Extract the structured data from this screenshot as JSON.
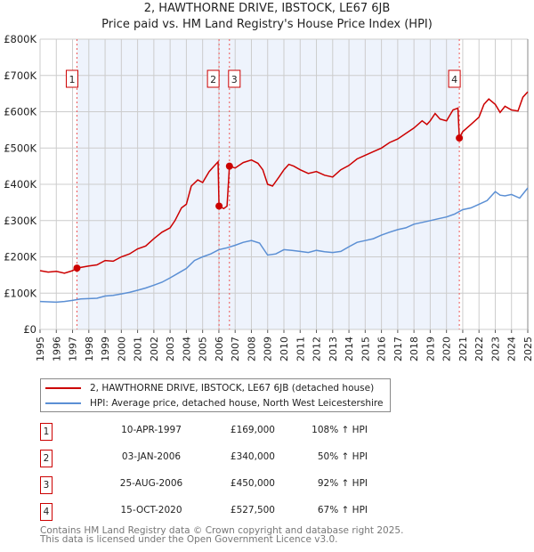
{
  "chart_data": {
    "type": "line",
    "title": "2, HAWTHORNE DRIVE, IBSTOCK, LE67 6JB",
    "subtitle": "Price paid vs. HM Land Registry's House Price Index (HPI)",
    "xlim": [
      1995,
      2025
    ],
    "ylim": [
      0,
      800000
    ],
    "x_ticks": [
      "1995",
      "1996",
      "1997",
      "1998",
      "1999",
      "2000",
      "2001",
      "2002",
      "2003",
      "2004",
      "2005",
      "2006",
      "2007",
      "2008",
      "2009",
      "2010",
      "2011",
      "2012",
      "2013",
      "2014",
      "2015",
      "2016",
      "2017",
      "2018",
      "2019",
      "2020",
      "2021",
      "2022",
      "2023",
      "2024",
      "2025"
    ],
    "y_ticks": [
      {
        "value": 0,
        "label": "£0"
      },
      {
        "value": 100000,
        "label": "£100K"
      },
      {
        "value": 200000,
        "label": "£200K"
      },
      {
        "value": 300000,
        "label": "£300K"
      },
      {
        "value": 400000,
        "label": "£400K"
      },
      {
        "value": 500000,
        "label": "£500K"
      },
      {
        "value": 600000,
        "label": "£600K"
      },
      {
        "value": 700000,
        "label": "£700K"
      },
      {
        "value": 800000,
        "label": "£800K"
      }
    ],
    "grid": true,
    "series": [
      {
        "name": "2, HAWTHORNE DRIVE, IBSTOCK, LE67 6JB (detached house)",
        "color": "#cc0000",
        "x": [
          1995,
          1995.5,
          1996,
          1996.5,
          1997,
          1997.27,
          1998,
          1998.5,
          1999,
          1999.5,
          2000,
          2000.5,
          2001,
          2001.5,
          2002,
          2002.5,
          2003,
          2003.3,
          2003.7,
          2004,
          2004.3,
          2004.7,
          2005,
          2005.4,
          2005.7,
          2005.95,
          2006.01,
          2006.3,
          2006.5,
          2006.65,
          2007,
          2007.5,
          2008,
          2008.4,
          2008.7,
          2009,
          2009.3,
          2009.7,
          2010,
          2010.3,
          2010.6,
          2011,
          2011.5,
          2012,
          2012.5,
          2013,
          2013.5,
          2014,
          2014.5,
          2015,
          2015.5,
          2016,
          2016.5,
          2017,
          2017.5,
          2018,
          2018.5,
          2018.8,
          2019,
          2019.3,
          2019.6,
          2020,
          2020.4,
          2020.7,
          2020.79,
          2021,
          2021.5,
          2022,
          2022.3,
          2022.6,
          2023,
          2023.3,
          2023.6,
          2024,
          2024.4,
          2024.7,
          2025
        ],
        "y": [
          162000,
          158000,
          160000,
          155000,
          162000,
          169000,
          175000,
          178000,
          190000,
          188000,
          200000,
          208000,
          222000,
          230000,
          250000,
          268000,
          280000,
          300000,
          335000,
          345000,
          395000,
          412000,
          405000,
          435000,
          450000,
          462000,
          340000,
          333000,
          340000,
          450000,
          445000,
          460000,
          467000,
          458000,
          440000,
          400000,
          395000,
          420000,
          440000,
          455000,
          450000,
          440000,
          430000,
          435000,
          425000,
          420000,
          440000,
          452000,
          470000,
          480000,
          490000,
          500000,
          515000,
          525000,
          540000,
          555000,
          575000,
          565000,
          575000,
          595000,
          580000,
          575000,
          605000,
          610000,
          527500,
          545000,
          565000,
          585000,
          620000,
          635000,
          620000,
          598000,
          615000,
          605000,
          602000,
          640000,
          655000
        ]
      },
      {
        "name": "HPI: Average price, detached house, North West Leicestershire",
        "color": "#5b8fd4",
        "x": [
          1995,
          1995.5,
          1996,
          1996.5,
          1997,
          1997.5,
          1998,
          1998.5,
          1999,
          1999.5,
          2000,
          2000.5,
          2001,
          2001.5,
          2002,
          2002.5,
          2003,
          2003.5,
          2004,
          2004.5,
          2005,
          2005.5,
          2006,
          2006.5,
          2007,
          2007.5,
          2008,
          2008.5,
          2009,
          2009.5,
          2010,
          2010.5,
          2011,
          2011.5,
          2012,
          2012.5,
          2013,
          2013.5,
          2014,
          2014.5,
          2015,
          2015.5,
          2016,
          2016.5,
          2017,
          2017.5,
          2018,
          2018.5,
          2019,
          2019.5,
          2020,
          2020.5,
          2021,
          2021.5,
          2022,
          2022.5,
          2023,
          2023.3,
          2023.6,
          2024,
          2024.5,
          2025
        ],
        "y": [
          77000,
          76000,
          75000,
          77000,
          80000,
          84000,
          85000,
          86000,
          92000,
          94000,
          98000,
          102000,
          108000,
          114000,
          122000,
          130000,
          142000,
          155000,
          168000,
          190000,
          200000,
          208000,
          220000,
          225000,
          232000,
          240000,
          245000,
          238000,
          205000,
          208000,
          220000,
          218000,
          215000,
          212000,
          218000,
          214000,
          212000,
          215000,
          228000,
          240000,
          245000,
          250000,
          260000,
          268000,
          275000,
          280000,
          290000,
          295000,
          300000,
          305000,
          310000,
          318000,
          330000,
          335000,
          345000,
          355000,
          380000,
          370000,
          368000,
          372000,
          362000,
          390000
        ]
      }
    ],
    "sales": [
      {
        "num": "1",
        "x": 1997.27,
        "y": 169000
      },
      {
        "num": "2",
        "x": 2006.01,
        "y": 340000
      },
      {
        "num": "3",
        "x": 2006.65,
        "y": 450000
      },
      {
        "num": "4",
        "x": 2020.79,
        "y": 527500
      }
    ]
  },
  "legend": {
    "property": "2, HAWTHORNE DRIVE, IBSTOCK, LE67 6JB (detached house)",
    "hpi": "HPI: Average price, detached house, North West Leicestershire"
  },
  "table": [
    {
      "num": "1",
      "date": "10-APR-1997",
      "price": "£169,000",
      "hpi": "108% ↑ HPI"
    },
    {
      "num": "2",
      "date": "03-JAN-2006",
      "price": "£340,000",
      "hpi": "50% ↑ HPI"
    },
    {
      "num": "3",
      "date": "25-AUG-2006",
      "price": "£450,000",
      "hpi": "92% ↑ HPI"
    },
    {
      "num": "4",
      "date": "15-OCT-2020",
      "price": "£527,500",
      "hpi": "67% ↑ HPI"
    }
  ],
  "footer": {
    "line1": "Contains HM Land Registry data © Crown copyright and database right 2025.",
    "line2": "This data is licensed under the Open Government Licence v3.0."
  }
}
